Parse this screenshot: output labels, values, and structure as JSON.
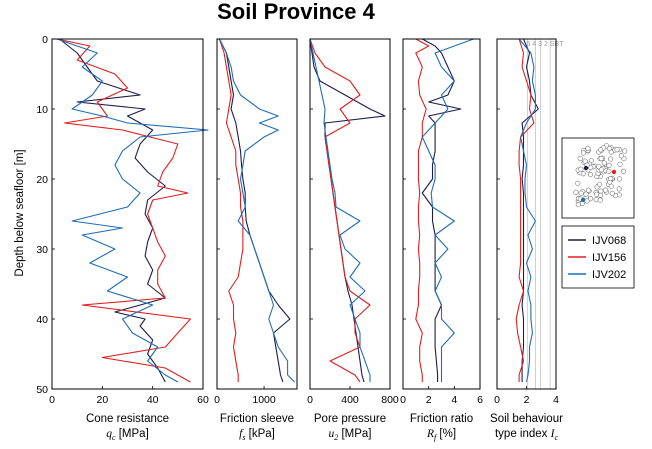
{
  "title": "Soil Province 4",
  "y_axis_label": "Depth below seafloor [m]",
  "legend": [
    {
      "name": "IJV068",
      "color": "#1c1c4e"
    },
    {
      "name": "IJV156",
      "color": "#e0201e"
    },
    {
      "name": "IJV202",
      "color": "#1f6db5"
    }
  ],
  "inset": {
    "sbt_zone_labels": "5 4 3 2 SBT"
  },
  "chart_data": [
    {
      "type": "line",
      "id": "qc",
      "xlabel_line1": "Cone resistance",
      "xlabel_line2_symbol": "q",
      "xlabel_line2_sub": "c",
      "xlabel_line2_unit": " [MPa]",
      "xlim": [
        0,
        60
      ],
      "xticks": [
        0,
        20,
        40,
        60
      ],
      "ylim": [
        0,
        50
      ],
      "yticks": [
        0,
        10,
        20,
        30,
        40,
        50
      ],
      "series": [
        {
          "name": "IJV068",
          "y": [
            0,
            2,
            4,
            6,
            8,
            9,
            10,
            11,
            12,
            13,
            15,
            17,
            19,
            21,
            23,
            25,
            27,
            29,
            31,
            33,
            35,
            37,
            39,
            40,
            41,
            43,
            45,
            47,
            49
          ],
          "x": [
            3,
            10,
            14,
            18,
            35,
            10,
            37,
            30,
            35,
            40,
            35,
            33,
            38,
            45,
            38,
            37,
            40,
            38,
            37,
            40,
            38,
            45,
            25,
            37,
            35,
            40,
            38,
            42,
            45
          ]
        },
        {
          "name": "IJV156",
          "y": [
            0,
            1,
            3,
            5,
            7,
            9,
            11,
            12,
            13,
            15,
            17,
            19,
            21,
            22,
            23,
            25,
            27,
            29,
            31,
            33,
            35,
            37,
            38,
            40,
            42,
            44,
            45.5,
            47,
            49
          ],
          "x": [
            2,
            15,
            10,
            25,
            30,
            18,
            22,
            5,
            28,
            50,
            48,
            44,
            42,
            54,
            40,
            38,
            40,
            42,
            45,
            42,
            42,
            45,
            12,
            55,
            50,
            45,
            20,
            45,
            55
          ]
        },
        {
          "name": "IJV202",
          "y": [
            0,
            2,
            4,
            6,
            8,
            10,
            11,
            12,
            13,
            14,
            16,
            18,
            20,
            22,
            24,
            26,
            27,
            28,
            30,
            32,
            34,
            36,
            38,
            40,
            42,
            44,
            46,
            48,
            49
          ],
          "x": [
            2,
            18,
            12,
            20,
            16,
            8,
            20,
            30,
            62,
            35,
            28,
            25,
            28,
            35,
            30,
            8,
            28,
            12,
            25,
            15,
            30,
            22,
            40,
            28,
            32,
            42,
            38,
            45,
            50
          ]
        }
      ]
    },
    {
      "type": "line",
      "id": "fs",
      "xlabel_line1": "Friction sleeve",
      "xlabel_line2_symbol": "f",
      "xlabel_line2_sub": "s",
      "xlabel_line2_unit": " [kPa]",
      "xlim": [
        0,
        1700
      ],
      "xticks": [
        0,
        1000
      ],
      "ylim": [
        0,
        50
      ],
      "yticks": [
        0,
        10,
        20,
        30,
        40,
        50
      ],
      "series": [
        {
          "name": "IJV068",
          "y": [
            0,
            2,
            4,
            6,
            8,
            10,
            12,
            14,
            16,
            18,
            20,
            22,
            24,
            26,
            28,
            30,
            32,
            34,
            36,
            38,
            40,
            42,
            44,
            46,
            48,
            49
          ],
          "x": [
            50,
            200,
            250,
            300,
            350,
            300,
            400,
            450,
            500,
            520,
            550,
            600,
            600,
            620,
            700,
            800,
            900,
            1000,
            1100,
            1300,
            1550,
            1200,
            1250,
            1300,
            1350,
            1400
          ]
        },
        {
          "name": "IJV156",
          "y": [
            0,
            2,
            4,
            6,
            8,
            10,
            12,
            14,
            16,
            18,
            20,
            22,
            24,
            26,
            28,
            30,
            32,
            34,
            36,
            38,
            40,
            42,
            44,
            46,
            48,
            49
          ],
          "x": [
            50,
            150,
            200,
            250,
            300,
            250,
            200,
            300,
            400,
            400,
            450,
            500,
            500,
            550,
            550,
            550,
            500,
            450,
            250,
            350,
            350,
            400,
            350,
            400,
            450,
            450
          ]
        },
        {
          "name": "IJV202",
          "y": [
            0,
            2,
            4,
            6,
            8,
            10,
            11,
            12,
            13,
            14,
            16,
            18,
            20,
            22,
            24,
            26,
            28,
            30,
            32,
            34,
            36,
            38,
            40,
            42,
            44,
            46,
            48,
            49
          ],
          "x": [
            50,
            200,
            300,
            350,
            500,
            900,
            1300,
            900,
            1300,
            1000,
            600,
            550,
            500,
            550,
            600,
            450,
            700,
            800,
            900,
            1000,
            1100,
            1200,
            1100,
            1200,
            1300,
            1500,
            1500,
            1650
          ]
        }
      ]
    },
    {
      "type": "line",
      "id": "u2",
      "xlabel_line1": "Pore pressure",
      "xlabel_line2_symbol": "u",
      "xlabel_line2_sub": "2",
      "xlabel_line2_unit": " [MPa]",
      "xlim": [
        0,
        800
      ],
      "xticks": [
        0,
        400,
        800
      ],
      "ylim": [
        0,
        50
      ],
      "yticks": [
        0,
        10,
        20,
        30,
        40,
        50
      ],
      "series": [
        {
          "name": "IJV068",
          "y": [
            0,
            2,
            4,
            6,
            8,
            10,
            11,
            12,
            14,
            16,
            18,
            20,
            22,
            24,
            26,
            28,
            30,
            32,
            34,
            36,
            38,
            40,
            42,
            44,
            46,
            48,
            49
          ],
          "x": [
            0,
            20,
            40,
            100,
            350,
            600,
            750,
            150,
            150,
            170,
            190,
            210,
            230,
            250,
            270,
            290,
            310,
            330,
            350,
            380,
            420,
            440,
            460,
            480,
            500,
            520,
            540
          ]
        },
        {
          "name": "IJV156",
          "y": [
            0,
            2,
            4,
            6,
            8,
            10,
            12,
            14,
            16,
            18,
            20,
            22,
            24,
            26,
            28,
            30,
            32,
            34,
            36,
            38,
            40,
            42,
            44,
            46,
            48,
            49
          ],
          "x": [
            0,
            50,
            150,
            400,
            500,
            300,
            400,
            150,
            170,
            190,
            210,
            230,
            250,
            270,
            290,
            310,
            330,
            350,
            400,
            600,
            450,
            450,
            500,
            200,
            450,
            500
          ]
        },
        {
          "name": "IJV202",
          "y": [
            0,
            2,
            4,
            6,
            8,
            10,
            12,
            14,
            16,
            18,
            20,
            22,
            24,
            26,
            28,
            30,
            32,
            34,
            36,
            38,
            40,
            42,
            44,
            46,
            48,
            49
          ],
          "x": [
            0,
            30,
            60,
            90,
            120,
            150,
            140,
            160,
            180,
            200,
            220,
            250,
            260,
            500,
            300,
            350,
            500,
            400,
            550,
            400,
            450,
            500,
            500,
            550,
            600,
            600
          ]
        }
      ]
    },
    {
      "type": "line",
      "id": "rf",
      "xlabel_line1": "Friction ratio",
      "xlabel_line2_symbol": "R",
      "xlabel_line2_sub": "f",
      "xlabel_line2_unit": " [%]",
      "xlim": [
        0,
        6
      ],
      "xticks": [
        0,
        2,
        4,
        6
      ],
      "ylim": [
        0,
        50
      ],
      "yticks": [
        0,
        10,
        20,
        30,
        40,
        50
      ],
      "series": [
        {
          "name": "IJV068",
          "y": [
            0,
            1,
            2,
            4,
            6,
            8,
            9,
            10,
            11,
            12,
            14,
            16,
            18,
            20,
            22,
            24,
            26,
            28,
            30,
            32,
            34,
            36,
            38,
            40,
            42,
            44,
            46,
            48,
            49
          ],
          "x": [
            1.5,
            2.5,
            3,
            3.5,
            4,
            3.5,
            2,
            4.5,
            2,
            2.5,
            2.5,
            2.5,
            2.3,
            2.3,
            1.5,
            2.3,
            2.3,
            2.5,
            2.5,
            2.5,
            2.5,
            2.5,
            3,
            2.5,
            2.5,
            2.5,
            2.6,
            2.7,
            2.7
          ]
        },
        {
          "name": "IJV156",
          "y": [
            0,
            1,
            2,
            4,
            6,
            8,
            10,
            12,
            14,
            16,
            18,
            20,
            22,
            24,
            26,
            28,
            30,
            32,
            34,
            36,
            38,
            40,
            42,
            44,
            46,
            48,
            49
          ],
          "x": [
            1,
            2,
            1,
            1.5,
            1.2,
            1.3,
            1.8,
            1.5,
            1.5,
            1.2,
            1.2,
            1.2,
            1.3,
            1.2,
            1.2,
            1.3,
            1.2,
            1.3,
            1.3,
            1.2,
            1.2,
            1,
            1.5,
            1.3,
            1.3,
            1.5,
            1.5
          ]
        },
        {
          "name": "IJV202",
          "y": [
            0,
            2,
            4,
            6,
            8,
            10,
            12,
            14,
            16,
            18,
            20,
            22,
            24,
            26,
            28,
            30,
            32,
            34,
            36,
            38,
            40,
            42,
            44,
            46,
            48,
            49
          ],
          "x": [
            5.5,
            2.5,
            3,
            4,
            3,
            3.5,
            2.5,
            1.5,
            2,
            2.5,
            2.5,
            2.2,
            2.3,
            4,
            2.5,
            3.5,
            2.5,
            3,
            2.5,
            3,
            3,
            4,
            3,
            3,
            3,
            3
          ]
        }
      ]
    },
    {
      "type": "line",
      "id": "ic",
      "xlabel_line1": "Soil behaviour",
      "xlabel_line2_prefix": "type index ",
      "xlabel_line2_symbol": "I",
      "xlabel_line2_sub": "c",
      "xlabel_line2_unit": "",
      "xlim": [
        0,
        4
      ],
      "xticks": [
        0,
        2,
        4
      ],
      "ylim": [
        0,
        50
      ],
      "yticks": [
        0,
        10,
        20,
        30,
        40,
        50
      ],
      "sbt_boundaries": [
        2.05,
        2.6,
        2.95,
        3.6
      ],
      "series": [
        {
          "name": "IJV068",
          "y": [
            0,
            2,
            4,
            6,
            8,
            10,
            12,
            14,
            16,
            18,
            20,
            22,
            24,
            26,
            28,
            30,
            32,
            34,
            36,
            38,
            40,
            42,
            44,
            46,
            48,
            49
          ],
          "x": [
            1.8,
            2.2,
            2,
            2.2,
            2.3,
            2.8,
            1.7,
            1.8,
            1.8,
            1.8,
            1.7,
            1.8,
            1.8,
            1.8,
            1.8,
            1.8,
            1.8,
            1.8,
            1.8,
            1.7,
            1.8,
            1.8,
            1.8,
            1.7,
            1.7,
            1.7
          ]
        },
        {
          "name": "IJV156",
          "y": [
            0,
            2,
            4,
            6,
            8,
            10,
            12,
            14,
            16,
            18,
            20,
            22,
            24,
            26,
            28,
            30,
            32,
            34,
            36,
            38,
            40,
            42,
            44,
            46,
            48,
            49
          ],
          "x": [
            1.5,
            1.8,
            1.7,
            2,
            2.3,
            2.2,
            2.5,
            1.6,
            1.5,
            1.5,
            1.6,
            1.6,
            1.6,
            1.6,
            1.6,
            1.6,
            1.6,
            1.5,
            1.8,
            1.5,
            1.3,
            1.4,
            1.6,
            1.8,
            1.5,
            1.5
          ]
        },
        {
          "name": "IJV202",
          "y": [
            0,
            2,
            4,
            6,
            8,
            10,
            12,
            14,
            16,
            18,
            20,
            22,
            24,
            26,
            28,
            30,
            32,
            34,
            36,
            38,
            40,
            42,
            44,
            46,
            48,
            49
          ],
          "x": [
            1.5,
            2.3,
            2.5,
            2.4,
            2.6,
            2.6,
            2,
            1.6,
            1.8,
            2,
            1.9,
            1.9,
            2,
            2.6,
            2.1,
            2.4,
            2,
            2.3,
            2.1,
            2.3,
            2.3,
            2.4,
            2.2,
            2.2,
            2.1,
            2
          ]
        }
      ]
    }
  ]
}
